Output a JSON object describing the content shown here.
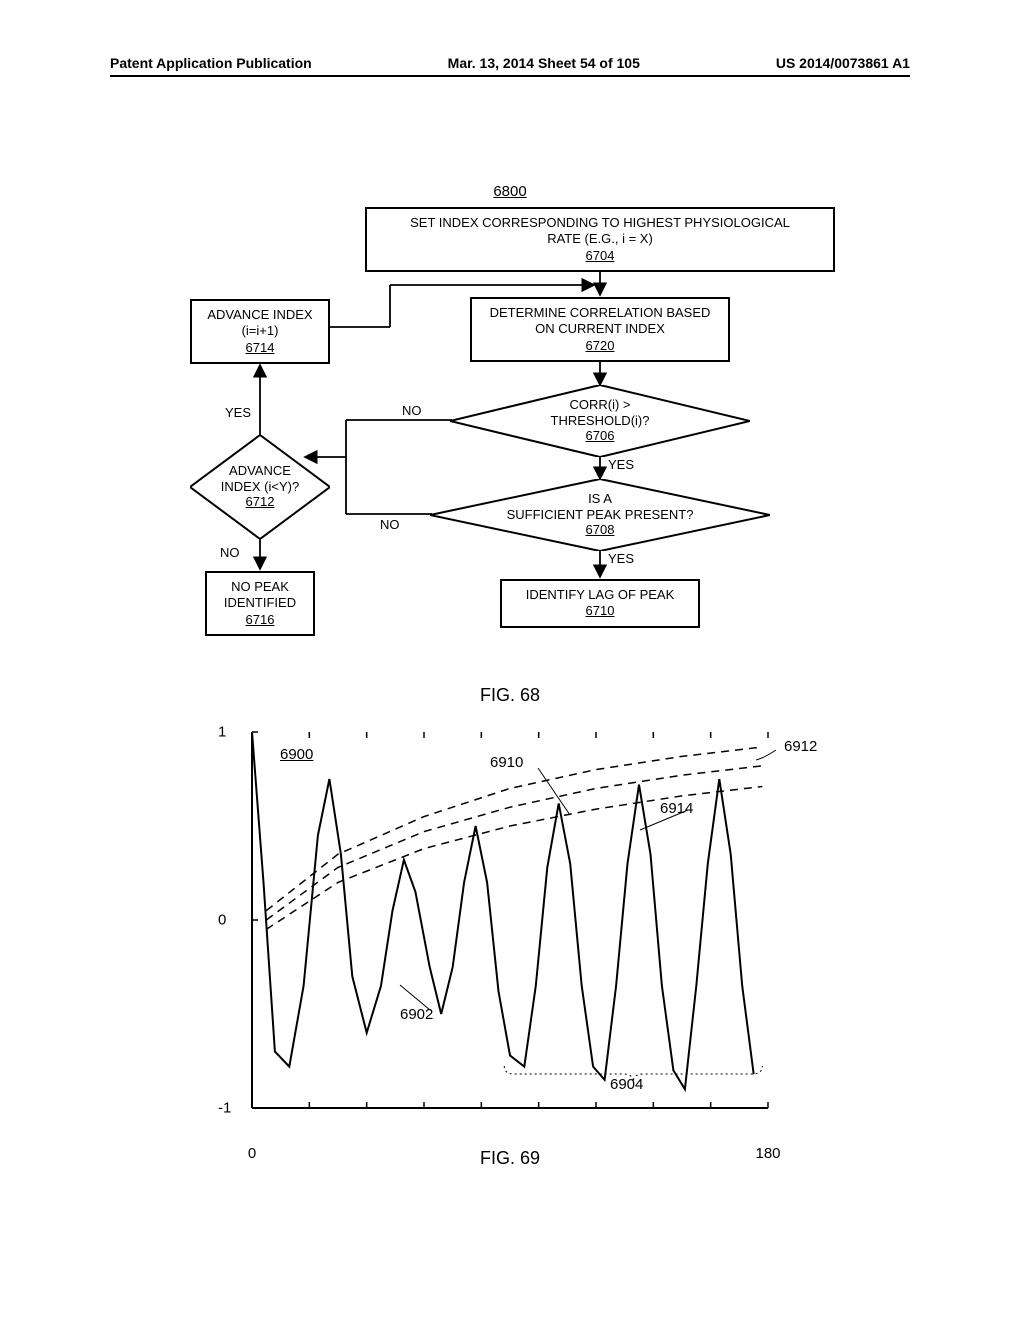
{
  "header": {
    "left": "Patent Application Publication",
    "center": "Mar. 13, 2014  Sheet 54 of 105",
    "right": "US 2014/0073861 A1"
  },
  "flowchart": {
    "ref_top": "6800",
    "box_6704": {
      "text": "SET INDEX CORRESPONDING TO HIGHEST PHYSIOLOGICAL\nRATE (E.G., i = X)",
      "ref": "6704"
    },
    "box_6720": {
      "text": "DETERMINE CORRELATION BASED\nON CURRENT INDEX",
      "ref": "6720"
    },
    "box_6714": {
      "text": "ADVANCE INDEX\n(i=i+1)",
      "ref": "6714"
    },
    "diamond_6706": {
      "text": "CORR(i) >\nTHRESHOLD(i)?",
      "ref": "6706"
    },
    "diamond_6708": {
      "text": "IS A\nSUFFICIENT PEAK PRESENT?",
      "ref": "6708"
    },
    "diamond_6712": {
      "text": "ADVANCE\nINDEX (i<Y)?",
      "ref": "6712"
    },
    "box_6716": {
      "text": "NO PEAK\nIDENTIFIED",
      "ref": "6716"
    },
    "box_6710": {
      "text": "IDENTIFY LAG OF PEAK",
      "ref": "6710"
    },
    "labels": {
      "yes": "YES",
      "no": "NO"
    },
    "caption": "FIG. 68"
  },
  "chart": {
    "type": "line",
    "xlim": [
      0,
      180
    ],
    "ylim": [
      -1,
      1
    ],
    "xticks": [
      0,
      20,
      40,
      60,
      80,
      100,
      120,
      140,
      160,
      180
    ],
    "yticks": [
      -1,
      0,
      1
    ],
    "xtick_labels": {
      "0": "0",
      "180": "180"
    },
    "ytick_labels": {
      "-1": "-1",
      "0": "0",
      "1": "1"
    },
    "background_color": "#ffffff",
    "axis_color": "#000000",
    "main_curve": {
      "ref": "6902",
      "color": "#000000",
      "linewidth": 2,
      "points": [
        [
          0,
          1.0
        ],
        [
          4,
          0.2
        ],
        [
          8,
          -0.7
        ],
        [
          13,
          -0.78
        ],
        [
          18,
          -0.35
        ],
        [
          23,
          0.45
        ],
        [
          27,
          0.75
        ],
        [
          31,
          0.35
        ],
        [
          35,
          -0.3
        ],
        [
          40,
          -0.6
        ],
        [
          45,
          -0.35
        ],
        [
          49,
          0.05
        ],
        [
          53,
          0.32
        ],
        [
          57,
          0.15
        ],
        [
          62,
          -0.25
        ],
        [
          66,
          -0.5
        ],
        [
          70,
          -0.25
        ],
        [
          74,
          0.2
        ],
        [
          78,
          0.5
        ],
        [
          82,
          0.2
        ],
        [
          86,
          -0.38
        ],
        [
          90,
          -0.72
        ],
        [
          95,
          -0.78
        ],
        [
          99,
          -0.35
        ],
        [
          103,
          0.28
        ],
        [
          107,
          0.62
        ],
        [
          111,
          0.3
        ],
        [
          115,
          -0.35
        ],
        [
          119,
          -0.78
        ],
        [
          123,
          -0.85
        ],
        [
          127,
          -0.35
        ],
        [
          131,
          0.3
        ],
        [
          135,
          0.72
        ],
        [
          139,
          0.35
        ],
        [
          143,
          -0.35
        ],
        [
          147,
          -0.8
        ],
        [
          151,
          -0.9
        ],
        [
          155,
          -0.35
        ],
        [
          159,
          0.3
        ],
        [
          163,
          0.75
        ],
        [
          167,
          0.35
        ],
        [
          171,
          -0.35
        ],
        [
          175,
          -0.82
        ]
      ]
    },
    "threshold_curves": [
      {
        "ref": "6912",
        "color": "#000000",
        "dash": "8 6",
        "linewidth": 1.5,
        "points": [
          [
            5,
            0.05
          ],
          [
            30,
            0.35
          ],
          [
            60,
            0.55
          ],
          [
            90,
            0.7
          ],
          [
            120,
            0.8
          ],
          [
            150,
            0.87
          ],
          [
            178,
            0.92
          ]
        ]
      },
      {
        "ref": "6910",
        "color": "#000000",
        "dash": "8 6",
        "linewidth": 1.5,
        "points": [
          [
            5,
            0.0
          ],
          [
            30,
            0.28
          ],
          [
            60,
            0.47
          ],
          [
            90,
            0.6
          ],
          [
            120,
            0.7
          ],
          [
            150,
            0.77
          ],
          [
            178,
            0.82
          ]
        ]
      },
      {
        "ref": "6914",
        "color": "#000000",
        "dash": "8 6",
        "linewidth": 1.5,
        "points": [
          [
            5,
            -0.05
          ],
          [
            30,
            0.2
          ],
          [
            60,
            0.38
          ],
          [
            90,
            0.5
          ],
          [
            120,
            0.59
          ],
          [
            150,
            0.66
          ],
          [
            178,
            0.71
          ]
        ]
      }
    ],
    "annotations": {
      "a6900": "6900",
      "a6910": "6910",
      "a6912": "6912",
      "a6914": "6914",
      "a6902": "6902",
      "a6904": "6904"
    },
    "bracket_range": [
      88,
      178
    ],
    "caption": "FIG. 69"
  }
}
